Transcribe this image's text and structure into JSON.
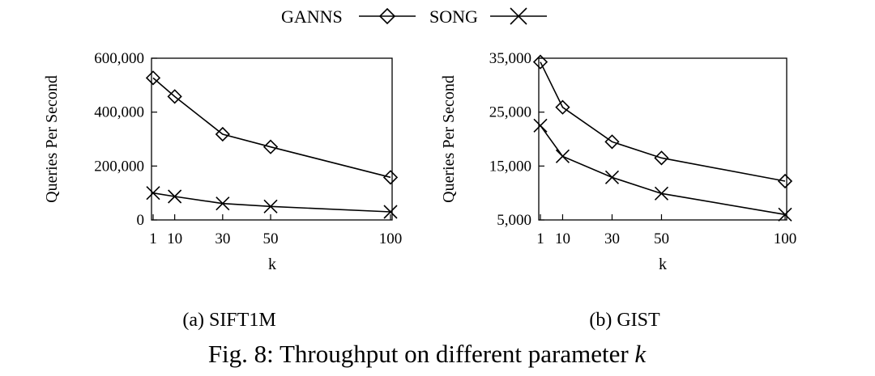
{
  "legend": [
    {
      "name": "GANNS",
      "marker": "diamond"
    },
    {
      "name": "SONG",
      "marker": "cross"
    }
  ],
  "chart_data": [
    {
      "type": "line",
      "x": [
        1,
        10,
        30,
        50,
        100
      ],
      "xticks": [
        "1",
        "10",
        "30",
        "50",
        "100"
      ],
      "xlabel": "k",
      "ylabel": "Queries Per Second",
      "ylim": [
        0,
        600000
      ],
      "yticks": [
        "0",
        "200,000",
        "400,000",
        "600,000"
      ],
      "ytick_values": [
        0,
        200000,
        400000,
        600000
      ],
      "series": [
        {
          "name": "GANNS",
          "values": [
            527000,
            458000,
            318000,
            271000,
            158000
          ]
        },
        {
          "name": "SONG",
          "values": [
            100000,
            87000,
            61000,
            50000,
            30000
          ]
        }
      ],
      "grid": false,
      "legend": "top-center",
      "subcaption": "(a) SIFT1M"
    },
    {
      "type": "line",
      "x": [
        1,
        10,
        30,
        50,
        100
      ],
      "xticks": [
        "1",
        "10",
        "30",
        "50",
        "100"
      ],
      "xlabel": "k",
      "ylabel": "Queries Per Second",
      "ylim": [
        5000,
        35000
      ],
      "yticks": [
        "5,000",
        "15,000",
        "25,000",
        "35,000"
      ],
      "ytick_values": [
        5000,
        15000,
        25000,
        35000
      ],
      "series": [
        {
          "name": "GANNS",
          "values": [
            34300,
            25900,
            19500,
            16500,
            12200
          ]
        },
        {
          "name": "SONG",
          "values": [
            22500,
            16800,
            12900,
            9900,
            6000
          ]
        }
      ],
      "grid": false,
      "legend": "top-center",
      "subcaption": "(b) GIST"
    }
  ],
  "caption": {
    "prefix": "Fig. 8: Throughput on different parameter ",
    "variable": "k"
  }
}
